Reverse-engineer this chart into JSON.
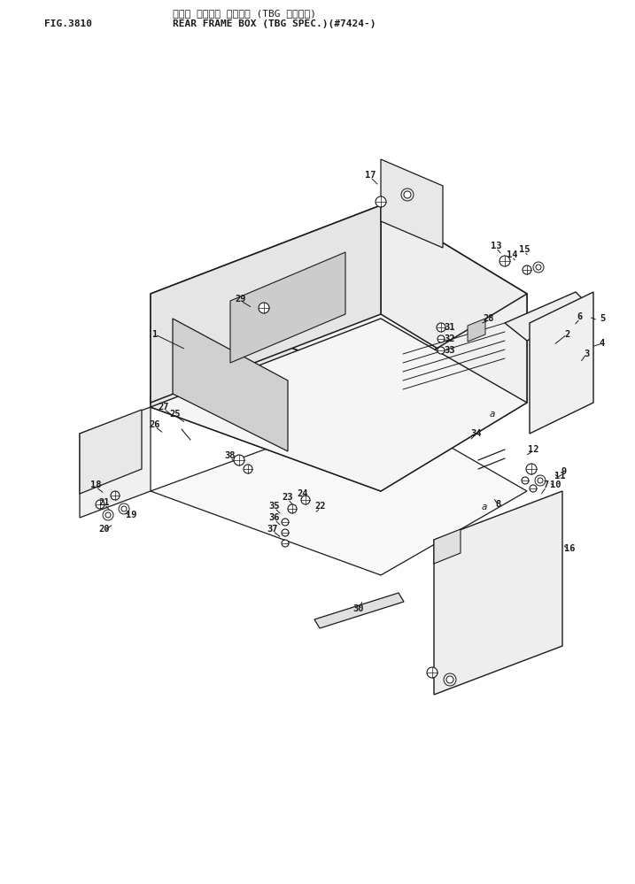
{
  "title_line1": "リヤー フレーム ボックス (TBG スペック)",
  "title_line2": "REAR FRAME BOX (TBG SPEC.)(#7424-)",
  "fig_label": "FIG.3810",
  "bg_color": "#ffffff",
  "line_color": "#1a1a1a"
}
